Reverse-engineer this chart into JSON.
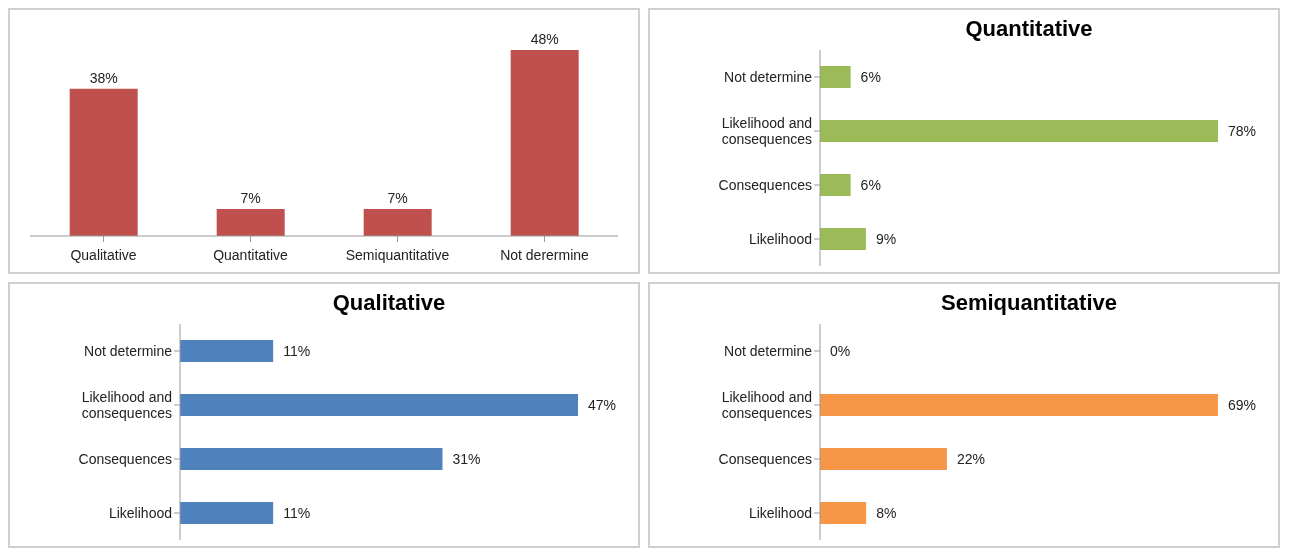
{
  "chart_data": [
    {
      "type": "bar",
      "categories": [
        "Qualitative",
        "Quantitative",
        "Semiquantitative",
        "Not derermine"
      ],
      "values": [
        38,
        7,
        7,
        48
      ],
      "color": "#c0504d",
      "value_labels": [
        "38%",
        "7%",
        "7%",
        "48%"
      ]
    },
    {
      "type": "bar",
      "orientation": "horizontal",
      "title": "Quantitative",
      "categories": [
        "Not determine",
        "Likelihood and consequences",
        "Consequences",
        "Likelihood"
      ],
      "values": [
        6,
        78,
        6,
        9
      ],
      "color": "#9bbb59",
      "value_labels": [
        "6%",
        "78%",
        "6%",
        "9%"
      ]
    },
    {
      "type": "bar",
      "orientation": "horizontal",
      "title": "Qualitative",
      "categories": [
        "Not determine",
        "Likelihood and consequences",
        "Consequences",
        "Likelihood"
      ],
      "values": [
        11,
        47,
        31,
        11
      ],
      "color": "#4f81bd",
      "value_labels": [
        "11%",
        "47%",
        "31%",
        "11%"
      ]
    },
    {
      "type": "bar",
      "orientation": "horizontal",
      "title": "Semiquantitative",
      "categories": [
        "Not determine",
        "Likelihood and consequences",
        "Consequences",
        "Likelihood"
      ],
      "values": [
        0,
        69,
        22,
        8
      ],
      "color": "#f79646",
      "value_labels": [
        "0%",
        "69%",
        "22%",
        "8%"
      ]
    }
  ]
}
